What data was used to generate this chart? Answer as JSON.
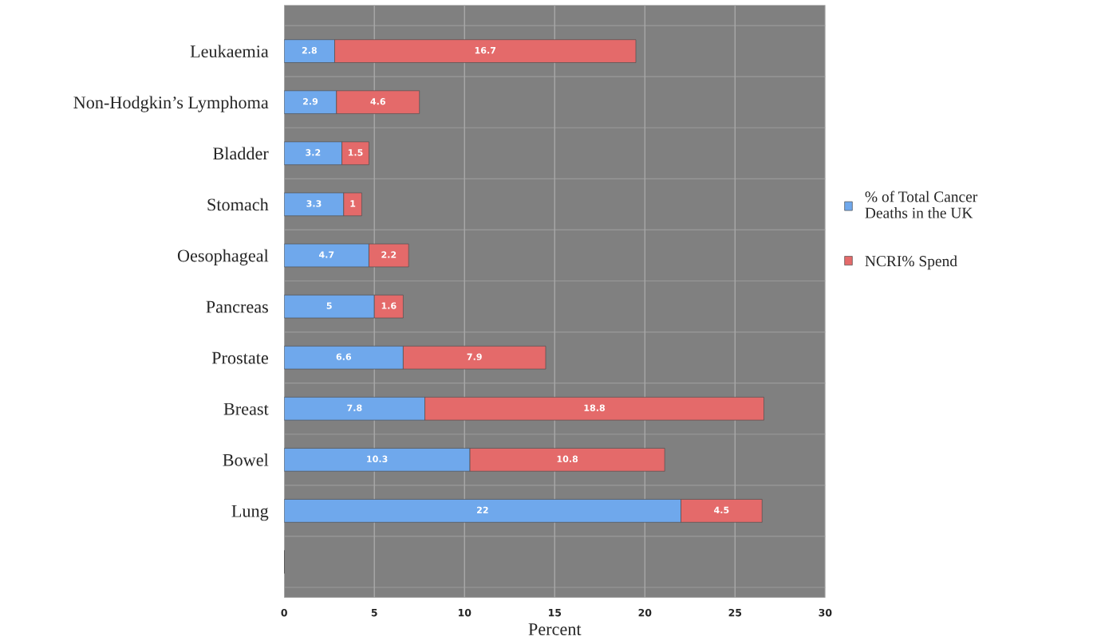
{
  "chart_data": {
    "type": "bar",
    "orientation": "horizontal",
    "stacked": true,
    "xlabel": "Percent",
    "categories": [
      "Leukaemia",
      "Non-Hodgkin’s Lymphoma",
      "Bladder",
      "Stomach",
      "Oesophageal",
      "Pancreas",
      "Prostate",
      "Breast",
      "Bowel",
      "Lung",
      null
    ],
    "series": [
      {
        "name": "% of Total Cancer Deaths in the UK",
        "color": "#6fa8ec",
        "values": [
          2.8,
          2.9,
          3.2,
          3.3,
          4.7,
          5,
          6.6,
          7.8,
          10.3,
          22,
          null
        ]
      },
      {
        "name": "NCRI% Spend",
        "color": "#e46a6a",
        "values": [
          16.7,
          4.6,
          1.5,
          1,
          2.2,
          1.6,
          7.9,
          18.8,
          10.8,
          4.5,
          null
        ]
      }
    ],
    "xlim": [
      0,
      30
    ],
    "xticks": [
      0,
      5,
      10,
      15,
      20,
      25,
      30
    ],
    "grid": true,
    "legend": "right",
    "data_labels": true
  }
}
